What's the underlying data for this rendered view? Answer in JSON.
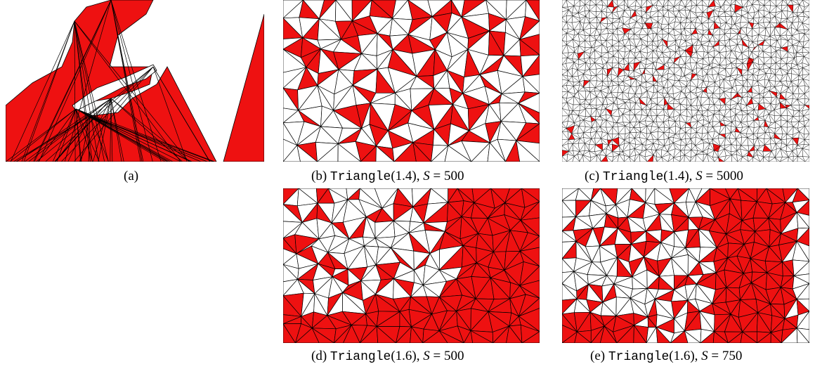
{
  "figure": {
    "panels": [
      {
        "id": "a",
        "caption_label": "(a)",
        "algorithm": "",
        "param": "",
        "s_label": "",
        "s_value": ""
      },
      {
        "id": "b",
        "caption_label": "(b)",
        "algorithm": "Triangle",
        "param": "(1.4)",
        "s_label": "S",
        "s_value": "= 500"
      },
      {
        "id": "c",
        "caption_label": "(c)",
        "algorithm": "Triangle",
        "param": "(1.4)",
        "s_label": "S",
        "s_value": "= 5000"
      },
      {
        "id": "d",
        "caption_label": "(d)",
        "algorithm": "Triangle",
        "param": "(1.6)",
        "s_label": "S",
        "s_value": "= 500"
      },
      {
        "id": "e",
        "caption_label": "(e)",
        "algorithm": "Triangle",
        "param": "(1.6)",
        "s_label": "S",
        "s_value": "= 750"
      }
    ],
    "colors": {
      "fill": "#ee1111",
      "edge": "#000000",
      "background": "#ffffff"
    }
  }
}
